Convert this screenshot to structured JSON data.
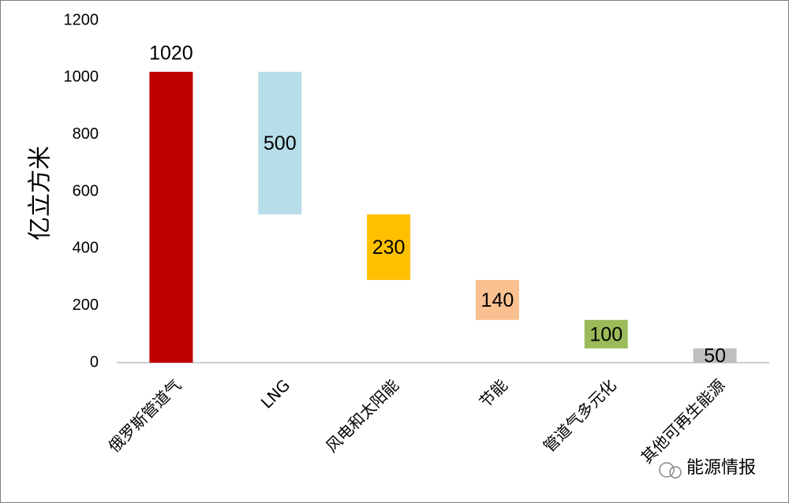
{
  "chart_data": {
    "type": "waterfall",
    "y_label": "亿立方米",
    "categories": [
      "俄罗斯管道气",
      "LNG",
      "风电和太阳能",
      "节能",
      "管道气多元化",
      "其他可再生能源"
    ],
    "values": [
      1020,
      500,
      230,
      140,
      100,
      50
    ],
    "colors": [
      "#c00000",
      "#b7dde8",
      "#ffc000",
      "#fac090",
      "#9bbb59",
      "#bfbfbf"
    ],
    "ylim": [
      0,
      1200
    ],
    "yticks": [
      0,
      200,
      400,
      600,
      800,
      1000,
      1200
    ],
    "watermark": "能源情报"
  }
}
